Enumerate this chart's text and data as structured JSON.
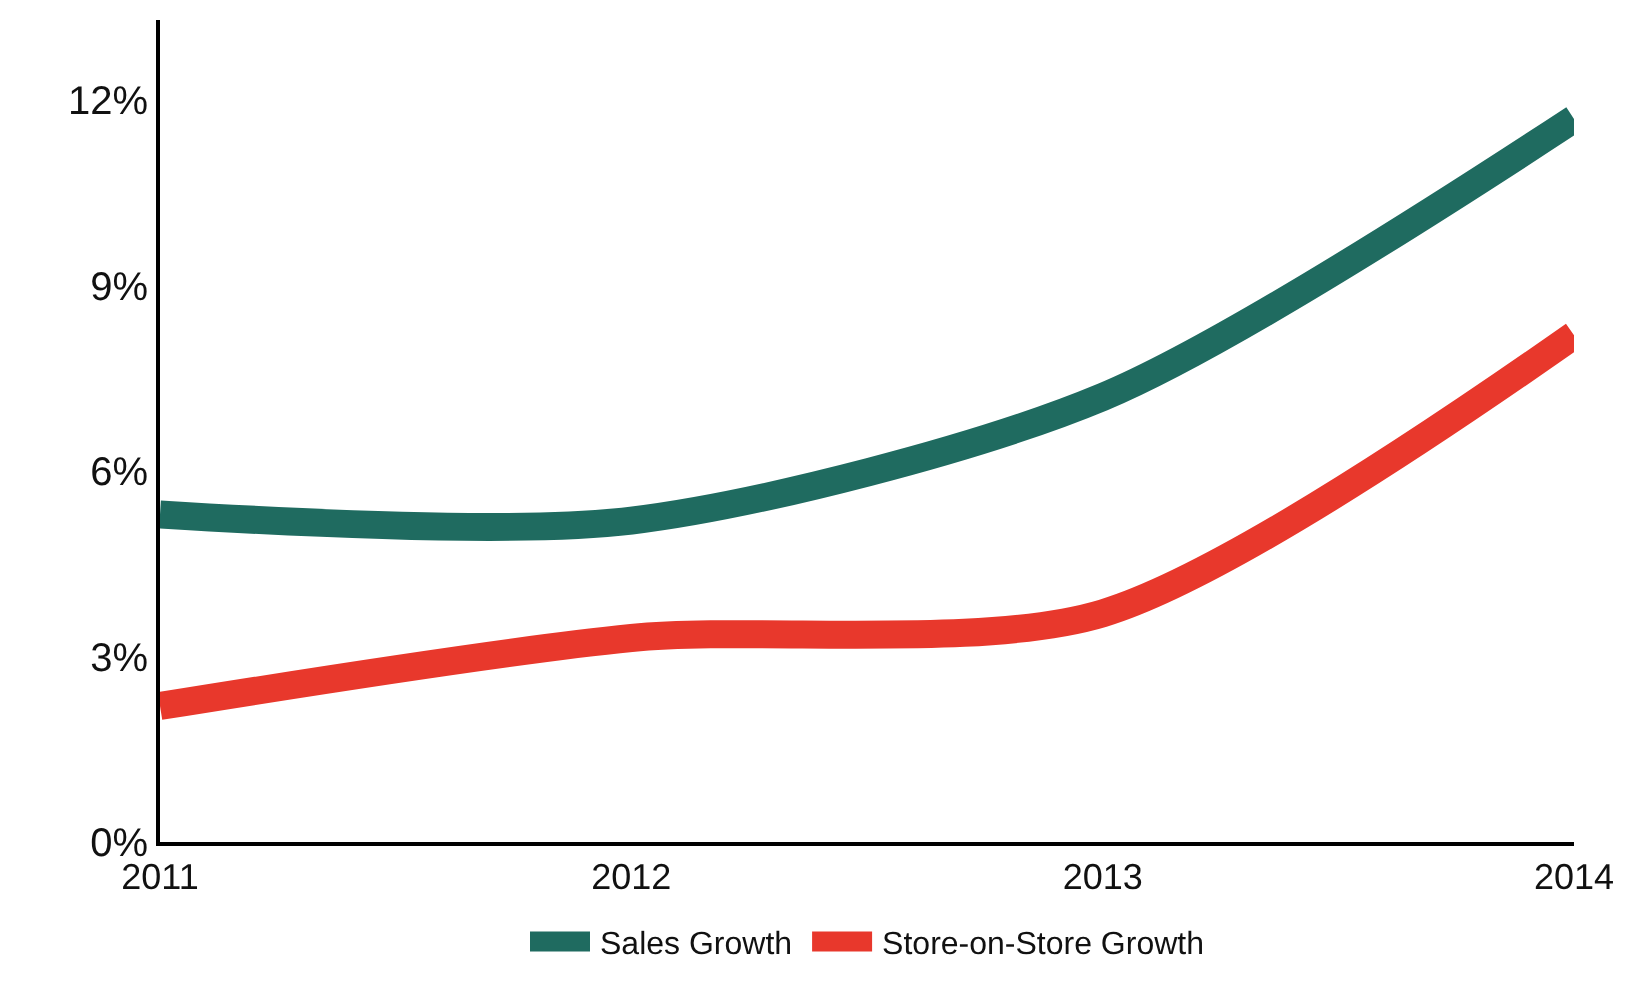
{
  "chart_data": {
    "type": "line",
    "categories": [
      "2011",
      "2012",
      "2013",
      "2014"
    ],
    "series": [
      {
        "name": "Sales Growth",
        "color": "#1f6b60",
        "values": [
          5.3,
          5.2,
          7.2,
          11.7
        ]
      },
      {
        "name": "Store-on-Store Growth",
        "color": "#e8382c",
        "values": [
          2.2,
          3.3,
          3.7,
          8.2
        ]
      }
    ],
    "ylim": [
      0,
      13.3
    ],
    "yticks": [
      {
        "value": 0,
        "label": "0%"
      },
      {
        "value": 3,
        "label": "3%"
      },
      {
        "value": 6,
        "label": "6%"
      },
      {
        "value": 9,
        "label": "9%"
      },
      {
        "value": 12,
        "label": "12%"
      }
    ],
    "legend": "bottom",
    "marker": "none",
    "line_style": "solid"
  }
}
